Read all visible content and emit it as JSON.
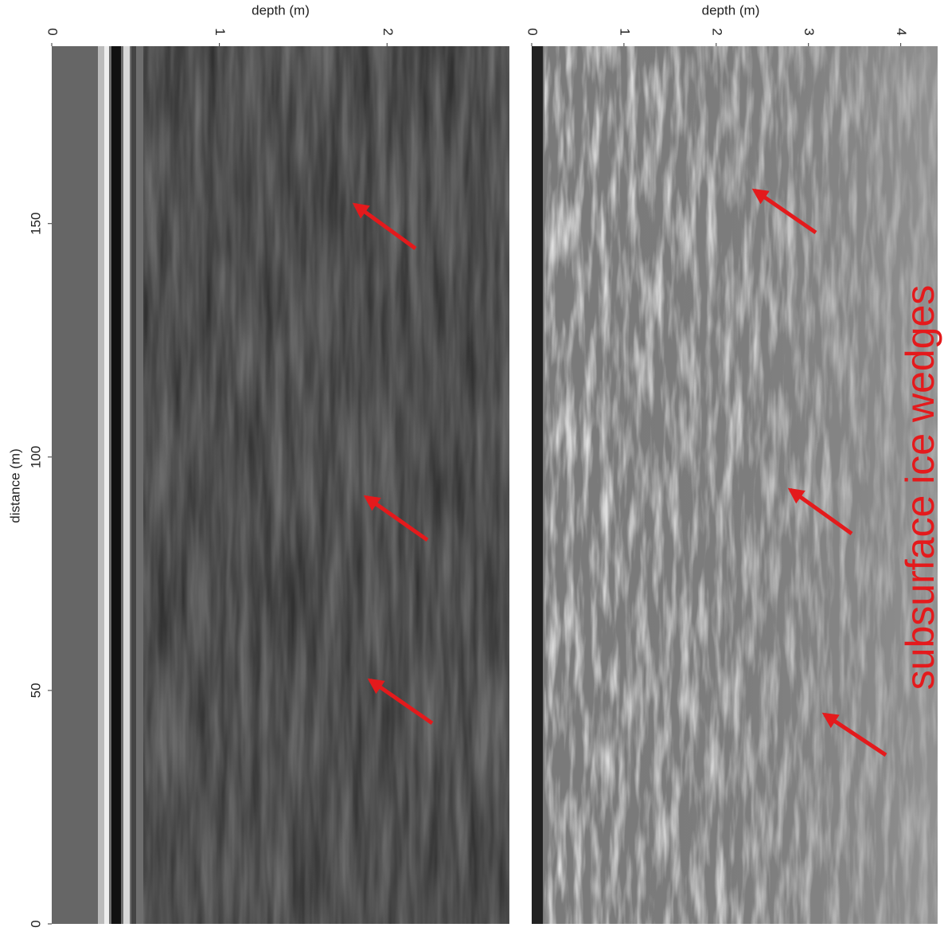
{
  "panels": [
    {
      "depth_label": "depth (m)",
      "depth_ticks": [
        0,
        1,
        2
      ],
      "depth_range": [
        0,
        2.73
      ]
    },
    {
      "depth_label": "depth (m)",
      "depth_ticks": [
        0,
        1,
        2,
        3,
        4
      ],
      "depth_range": [
        0,
        4.4
      ]
    }
  ],
  "distance_label": "distance (m)",
  "distance_ticks": [
    0,
    50,
    100,
    150
  ],
  "distance_range": [
    0,
    188
  ],
  "annotation": "subsurface ice wedges"
}
